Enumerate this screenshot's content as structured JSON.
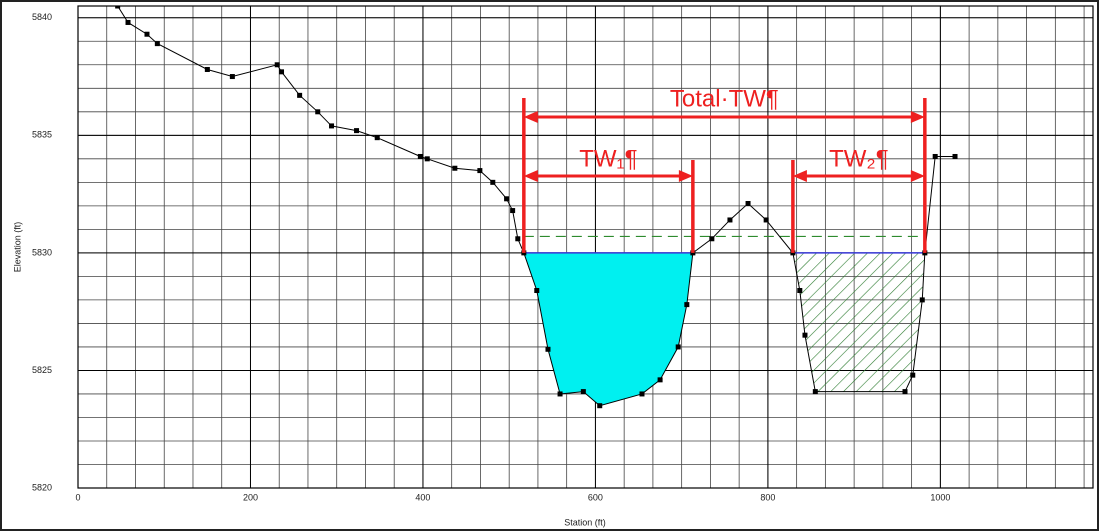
{
  "chart_data": {
    "type": "line",
    "x_label": "Station (ft)",
    "y_label": "Elevation (ft)",
    "xlim": [
      0,
      1177
    ],
    "ylim": [
      5820,
      5840.5
    ],
    "xticks": [
      0,
      200,
      400,
      600,
      800,
      1000
    ],
    "yticks": [
      5820,
      5825,
      5830,
      5835,
      5840
    ],
    "grid": true,
    "minor_grid": true,
    "color": "#000000",
    "x": [
      46,
      58,
      80,
      92,
      150,
      179,
      231,
      236,
      257,
      278,
      294,
      323,
      347,
      397,
      405,
      437,
      466,
      481,
      497,
      504,
      510,
      517,
      532,
      545,
      559,
      586,
      605,
      654,
      675,
      696,
      706,
      713,
      735,
      756,
      777,
      798,
      829,
      837,
      843,
      855,
      959,
      968,
      979,
      982,
      994,
      1017
    ],
    "values": [
      5840.5,
      5839.8,
      5839.3,
      5838.9,
      5837.8,
      5837.5,
      5838.0,
      5837.7,
      5836.7,
      5836.0,
      5835.4,
      5835.2,
      5834.9,
      5834.1,
      5834.0,
      5833.6,
      5833.5,
      5833.0,
      5832.3,
      5831.8,
      5830.6,
      5830.0,
      5828.4,
      5825.9,
      5824.0,
      5824.1,
      5823.5,
      5824.0,
      5824.6,
      5826.0,
      5827.8,
      5830.0,
      5830.6,
      5831.4,
      5832.1,
      5831.4,
      5830.0,
      5828.4,
      5826.5,
      5824.1,
      5824.1,
      5824.8,
      5828.0,
      5830.0,
      5834.1,
      5834.1
    ],
    "water_surface": {
      "elevation": 5830,
      "color": "#3a3ad8",
      "fill": "#00f0f0",
      "hatch": "#2e7d32",
      "reaches": [
        [
          517,
          713
        ],
        [
          829,
          982
        ]
      ]
    },
    "energy_grade": {
      "elevation": 5830.7,
      "color": "#2e8b2e"
    },
    "annotations": {
      "color": "#ee2020",
      "total": "Total·TW¶",
      "tw1": "TW₁¶",
      "tw2": "TW₂¶"
    }
  }
}
